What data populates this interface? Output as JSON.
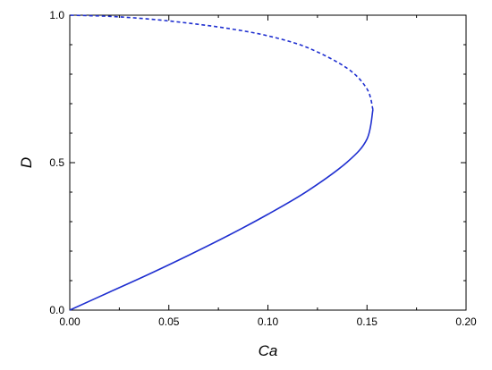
{
  "chart_data": {
    "type": "line",
    "title": "",
    "xlabel": "Ca",
    "ylabel": "D",
    "xlim": [
      0.0,
      0.2
    ],
    "ylim": [
      0.0,
      1.0
    ],
    "x_ticks": [
      "0.00",
      "0.05",
      "0.10",
      "0.15",
      "0.20"
    ],
    "y_ticks": [
      "0.0",
      "0.5",
      "1.0"
    ],
    "grid": false,
    "legend": "none",
    "line_color": "#1f2fd0",
    "series": [
      {
        "style": "solid",
        "x": [
          0.0,
          0.02,
          0.04,
          0.06,
          0.08,
          0.1,
          0.12,
          0.14,
          0.15,
          0.153
        ],
        "y": [
          0.0,
          0.061,
          0.122,
          0.186,
          0.253,
          0.325,
          0.404,
          0.502,
          0.58,
          0.68
        ]
      },
      {
        "style": "dashed",
        "x": [
          0.153,
          0.15,
          0.14,
          0.12,
          0.1,
          0.08,
          0.06,
          0.04,
          0.02,
          0.0
        ],
        "y": [
          0.68,
          0.75,
          0.82,
          0.89,
          0.93,
          0.955,
          0.973,
          0.987,
          0.996,
          1.0
        ]
      }
    ]
  }
}
